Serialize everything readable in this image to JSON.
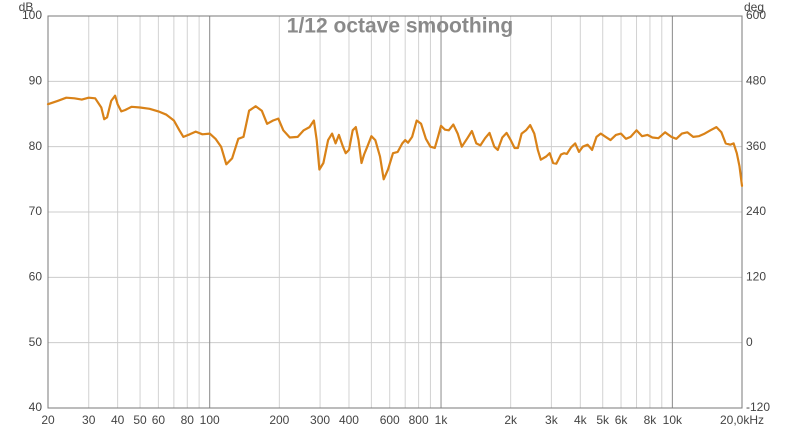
{
  "chart_data": {
    "type": "line",
    "title": "1/12 octave smoothing",
    "left_unit": "dB",
    "right_unit": "deg",
    "x_scale": "log",
    "xlim": [
      20,
      20000
    ],
    "ylim": [
      40,
      100
    ],
    "y2lim": [
      -120,
      600
    ],
    "grid": true,
    "y_ticks": [
      40,
      50,
      60,
      70,
      80,
      90,
      100
    ],
    "y2_ticks": [
      -120,
      0,
      120,
      240,
      360,
      480,
      600
    ],
    "x_tick_labels": [
      {
        "value": 20,
        "label": "20"
      },
      {
        "value": 30,
        "label": "30"
      },
      {
        "value": 40,
        "label": "40"
      },
      {
        "value": 50,
        "label": "50"
      },
      {
        "value": 60,
        "label": "60"
      },
      {
        "value": 80,
        "label": "80"
      },
      {
        "value": 100,
        "label": "100"
      },
      {
        "value": 200,
        "label": "200"
      },
      {
        "value": 300,
        "label": "300"
      },
      {
        "value": 400,
        "label": "400"
      },
      {
        "value": 600,
        "label": "600"
      },
      {
        "value": 800,
        "label": "800"
      },
      {
        "value": 1000,
        "label": "1k"
      },
      {
        "value": 2000,
        "label": "2k"
      },
      {
        "value": 3000,
        "label": "3k"
      },
      {
        "value": 4000,
        "label": "4k"
      },
      {
        "value": 5000,
        "label": "5k"
      },
      {
        "value": 6000,
        "label": "6k"
      },
      {
        "value": 8000,
        "label": "8k"
      },
      {
        "value": 10000,
        "label": "10k"
      },
      {
        "value": 20000,
        "label": "20,0kHz"
      }
    ],
    "x_major_lines": [
      100,
      1000,
      10000
    ],
    "x_minor_lines": [
      30,
      40,
      50,
      60,
      70,
      80,
      90,
      200,
      300,
      400,
      500,
      600,
      700,
      800,
      900,
      2000,
      3000,
      4000,
      5000,
      6000,
      7000,
      8000,
      9000
    ],
    "series": [
      {
        "color": "#d98218",
        "points": [
          [
            20,
            86.5
          ],
          [
            22,
            87.0
          ],
          [
            24,
            87.5
          ],
          [
            26,
            87.4
          ],
          [
            28,
            87.2
          ],
          [
            30,
            87.5
          ],
          [
            32,
            87.4
          ],
          [
            34,
            86.0
          ],
          [
            35,
            84.2
          ],
          [
            36,
            84.5
          ],
          [
            37.5,
            87.0
          ],
          [
            39,
            87.8
          ],
          [
            40,
            86.5
          ],
          [
            41.5,
            85.4
          ],
          [
            43,
            85.6
          ],
          [
            46,
            86.1
          ],
          [
            50,
            86.0
          ],
          [
            55,
            85.8
          ],
          [
            60,
            85.4
          ],
          [
            65,
            84.9
          ],
          [
            70,
            84.0
          ],
          [
            74,
            82.5
          ],
          [
            77,
            81.5
          ],
          [
            82,
            81.9
          ],
          [
            87,
            82.3
          ],
          [
            93,
            81.9
          ],
          [
            100,
            82.0
          ],
          [
            106,
            81.2
          ],
          [
            112,
            80.0
          ],
          [
            118,
            77.3
          ],
          [
            125,
            78.2
          ],
          [
            133,
            81.2
          ],
          [
            140,
            81.5
          ],
          [
            148,
            85.5
          ],
          [
            158,
            86.2
          ],
          [
            168,
            85.5
          ],
          [
            177,
            83.5
          ],
          [
            188,
            84.0
          ],
          [
            198,
            84.3
          ],
          [
            208,
            82.5
          ],
          [
            222,
            81.4
          ],
          [
            240,
            81.5
          ],
          [
            255,
            82.5
          ],
          [
            270,
            83.0
          ],
          [
            282,
            84.0
          ],
          [
            290,
            81.0
          ],
          [
            298,
            76.5
          ],
          [
            310,
            77.5
          ],
          [
            325,
            81.0
          ],
          [
            338,
            82.0
          ],
          [
            350,
            80.5
          ],
          [
            362,
            81.8
          ],
          [
            375,
            80.2
          ],
          [
            387,
            79.0
          ],
          [
            400,
            79.5
          ],
          [
            415,
            82.5
          ],
          [
            428,
            83.0
          ],
          [
            440,
            81.0
          ],
          [
            453,
            77.5
          ],
          [
            465,
            78.8
          ],
          [
            480,
            80.0
          ],
          [
            500,
            81.6
          ],
          [
            520,
            81.0
          ],
          [
            545,
            78.5
          ],
          [
            565,
            75.0
          ],
          [
            590,
            76.5
          ],
          [
            620,
            79.0
          ],
          [
            650,
            79.2
          ],
          [
            680,
            80.5
          ],
          [
            700,
            81.0
          ],
          [
            720,
            80.6
          ],
          [
            750,
            81.5
          ],
          [
            785,
            84.0
          ],
          [
            820,
            83.5
          ],
          [
            860,
            81.2
          ],
          [
            900,
            80.0
          ],
          [
            940,
            79.8
          ],
          [
            970,
            81.5
          ],
          [
            1000,
            83.2
          ],
          [
            1040,
            82.6
          ],
          [
            1080,
            82.5
          ],
          [
            1130,
            83.4
          ],
          [
            1180,
            82.0
          ],
          [
            1230,
            80.0
          ],
          [
            1300,
            81.3
          ],
          [
            1360,
            82.4
          ],
          [
            1420,
            80.5
          ],
          [
            1480,
            80.2
          ],
          [
            1550,
            81.3
          ],
          [
            1620,
            82.1
          ],
          [
            1700,
            80.0
          ],
          [
            1760,
            79.5
          ],
          [
            1840,
            81.4
          ],
          [
            1920,
            82.1
          ],
          [
            2000,
            81.0
          ],
          [
            2080,
            79.8
          ],
          [
            2150,
            79.8
          ],
          [
            2230,
            82.0
          ],
          [
            2330,
            82.5
          ],
          [
            2430,
            83.3
          ],
          [
            2530,
            82.0
          ],
          [
            2620,
            79.5
          ],
          [
            2700,
            78.0
          ],
          [
            2850,
            78.5
          ],
          [
            2950,
            79.0
          ],
          [
            3050,
            77.5
          ],
          [
            3150,
            77.4
          ],
          [
            3300,
            78.8
          ],
          [
            3400,
            79.0
          ],
          [
            3500,
            78.9
          ],
          [
            3650,
            79.9
          ],
          [
            3800,
            80.5
          ],
          [
            3950,
            79.2
          ],
          [
            4100,
            80.0
          ],
          [
            4300,
            80.3
          ],
          [
            4500,
            79.5
          ],
          [
            4700,
            81.5
          ],
          [
            4900,
            82.0
          ],
          [
            5150,
            81.5
          ],
          [
            5400,
            81.0
          ],
          [
            5700,
            81.8
          ],
          [
            6000,
            82.0
          ],
          [
            6300,
            81.2
          ],
          [
            6600,
            81.5
          ],
          [
            7000,
            82.5
          ],
          [
            7400,
            81.6
          ],
          [
            7800,
            81.8
          ],
          [
            8200,
            81.4
          ],
          [
            8700,
            81.3
          ],
          [
            9300,
            82.2
          ],
          [
            9900,
            81.5
          ],
          [
            10400,
            81.2
          ],
          [
            11000,
            82.0
          ],
          [
            11600,
            82.2
          ],
          [
            12300,
            81.5
          ],
          [
            13000,
            81.6
          ],
          [
            13800,
            82.0
          ],
          [
            14600,
            82.5
          ],
          [
            15500,
            83.0
          ],
          [
            16300,
            82.2
          ],
          [
            17000,
            80.5
          ],
          [
            17800,
            80.3
          ],
          [
            18400,
            80.5
          ],
          [
            19000,
            79.0
          ],
          [
            19500,
            77.0
          ],
          [
            20000,
            74.0
          ]
        ]
      }
    ]
  }
}
